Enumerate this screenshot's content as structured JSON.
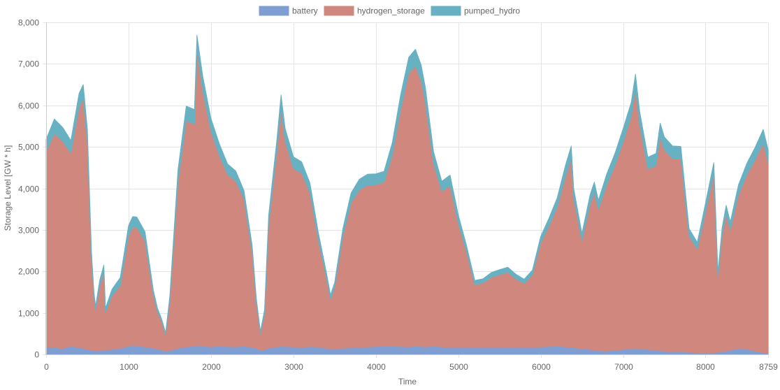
{
  "chart_data": {
    "type": "area",
    "stacked": true,
    "title": "",
    "xlabel": "Time",
    "ylabel": "Storage Level [GW * h]",
    "xlim": [
      0,
      8759
    ],
    "ylim": [
      0,
      8000
    ],
    "x_ticks": [
      "0",
      "1000",
      "2000",
      "3000",
      "4000",
      "5000",
      "6000",
      "7000",
      "8000",
      "8759"
    ],
    "x_tick_values": [
      0,
      1000,
      2000,
      3000,
      4000,
      5000,
      6000,
      7000,
      8000,
      8759
    ],
    "y_ticks": [
      "0",
      "1,000",
      "2,000",
      "3,000",
      "4,000",
      "5,000",
      "6,000",
      "7,000",
      "8,000"
    ],
    "y_tick_values": [
      0,
      1000,
      2000,
      3000,
      4000,
      5000,
      6000,
      7000,
      8000
    ],
    "grid": true,
    "legend_position": "top-center",
    "x": [
      0,
      100,
      200,
      300,
      400,
      450,
      500,
      550,
      580,
      600,
      650,
      700,
      720,
      800,
      900,
      1000,
      1050,
      1100,
      1200,
      1300,
      1350,
      1400,
      1450,
      1500,
      1600,
      1700,
      1800,
      1830,
      1900,
      2000,
      2100,
      2200,
      2300,
      2400,
      2500,
      2550,
      2600,
      2650,
      2700,
      2800,
      2850,
      2900,
      3000,
      3100,
      3200,
      3300,
      3400,
      3450,
      3500,
      3600,
      3700,
      3800,
      3900,
      4000,
      4100,
      4200,
      4300,
      4400,
      4480,
      4550,
      4600,
      4700,
      4800,
      4900,
      5000,
      5100,
      5200,
      5300,
      5400,
      5500,
      5600,
      5700,
      5800,
      5900,
      6000,
      6100,
      6200,
      6300,
      6370,
      6400,
      6500,
      6600,
      6650,
      6700,
      6800,
      6900,
      7000,
      7100,
      7150,
      7200,
      7300,
      7400,
      7450,
      7500,
      7600,
      7700,
      7800,
      7900,
      8000,
      8100,
      8150,
      8200,
      8250,
      8300,
      8400,
      8500,
      8600,
      8700,
      8759
    ],
    "series": [
      {
        "name": "battery",
        "color": "#7f9fd3",
        "values": [
          180,
          170,
          140,
          200,
          160,
          150,
          120,
          110,
          100,
          80,
          90,
          100,
          110,
          120,
          150,
          200,
          220,
          210,
          180,
          150,
          140,
          100,
          80,
          90,
          150,
          180,
          200,
          220,
          200,
          180,
          200,
          190,
          180,
          200,
          170,
          150,
          100,
          120,
          150,
          180,
          200,
          190,
          180,
          170,
          190,
          180,
          150,
          130,
          120,
          150,
          160,
          170,
          180,
          190,
          200,
          200,
          190,
          180,
          200,
          190,
          180,
          200,
          180,
          170,
          160,
          170,
          180,
          170,
          160,
          170,
          180,
          170,
          160,
          170,
          180,
          190,
          200,
          180,
          170,
          160,
          140,
          120,
          100,
          90,
          80,
          100,
          120,
          140,
          150,
          140,
          120,
          100,
          90,
          80,
          70,
          60,
          50,
          40,
          30,
          40,
          50,
          60,
          80,
          100,
          150,
          130,
          80,
          40,
          30
        ]
      },
      {
        "name": "hydrogen_storage",
        "color": "#d0877e",
        "values": [
          4700,
          5150,
          5000,
          4650,
          5800,
          6000,
          5000,
          2200,
          1300,
          1000,
          1550,
          1900,
          900,
          1300,
          1500,
          2650,
          2850,
          2850,
          2550,
          1300,
          900,
          700,
          400,
          1200,
          4000,
          5450,
          5350,
          7100,
          6150,
          5200,
          4600,
          4150,
          4000,
          3550,
          2300,
          1100,
          400,
          850,
          3000,
          4700,
          5700,
          4950,
          4300,
          4200,
          3700,
          2600,
          1700,
          1200,
          1500,
          2700,
          3500,
          3800,
          3900,
          3900,
          3950,
          4600,
          5700,
          6600,
          6750,
          6400,
          5900,
          4400,
          3750,
          3900,
          3000,
          2300,
          1500,
          1550,
          1700,
          1750,
          1800,
          1650,
          1550,
          1750,
          2500,
          2900,
          3350,
          4100,
          4550,
          3600,
          2600,
          3500,
          3800,
          3400,
          4000,
          4450,
          5000,
          5600,
          6250,
          5400,
          4350,
          4450,
          5150,
          4850,
          4650,
          4650,
          2800,
          2500,
          3400,
          4300,
          1800,
          2800,
          3300,
          2900,
          3700,
          4200,
          4600,
          5050,
          4600
        ]
      },
      {
        "name": "pumped_hydro",
        "color": "#67b1c3",
        "values": [
          300,
          350,
          330,
          300,
          330,
          350,
          300,
          150,
          100,
          80,
          150,
          150,
          100,
          150,
          200,
          250,
          250,
          250,
          220,
          100,
          80,
          60,
          40,
          100,
          300,
          350,
          350,
          370,
          350,
          300,
          280,
          250,
          240,
          200,
          150,
          100,
          50,
          100,
          200,
          300,
          350,
          300,
          280,
          270,
          240,
          180,
          120,
          100,
          110,
          180,
          230,
          250,
          260,
          260,
          260,
          300,
          350,
          380,
          400,
          380,
          360,
          280,
          240,
          250,
          200,
          150,
          100,
          100,
          110,
          120,
          120,
          110,
          100,
          110,
          160,
          190,
          220,
          270,
          300,
          240,
          170,
          230,
          250,
          220,
          260,
          290,
          320,
          340,
          350,
          330,
          280,
          290,
          330,
          310,
          300,
          300,
          180,
          160,
          220,
          280,
          120,
          180,
          210,
          190,
          240,
          270,
          300,
          330,
          300
        ]
      }
    ]
  }
}
